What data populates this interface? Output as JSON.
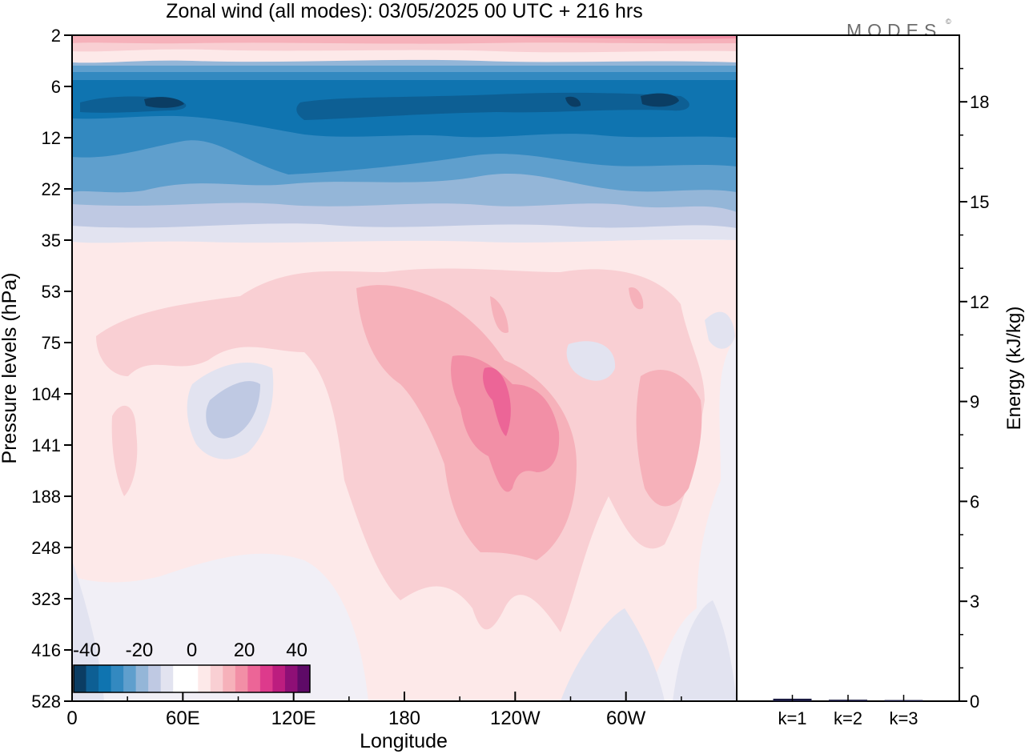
{
  "title": "Zonal wind (all modes):  03/05/2025  00 UTC  + 216 hrs",
  "logo": "MODES",
  "logo_mark": "©",
  "colors": {
    "negative": [
      "#0b3d63",
      "#0d5f94",
      "#0f74b0",
      "#3389c0",
      "#5f9fcd",
      "#94b6d8",
      "#bfc9e3",
      "#e2e3f0"
    ],
    "neutral": "#ffffff",
    "positive": [
      "#fde9e9",
      "#f9cfd3",
      "#f6b1ba",
      "#f28fa6",
      "#ec6597",
      "#dd3a8c",
      "#bc1d7f",
      "#8e0f76",
      "#5e0a67"
    ],
    "background_field": "#f1eff6"
  },
  "chart_data": [
    {
      "type": "heatmap",
      "title": "Zonal wind (all modes):  03/05/2025  00 UTC  + 216 hrs",
      "xlabel": "Longitude",
      "ylabel": "Pressure levels (hPa)",
      "x_ticks": [
        "0",
        "60E",
        "120E",
        "180",
        "120W",
        "60W"
      ],
      "x_tick_values": [
        0,
        60,
        120,
        180,
        240,
        300
      ],
      "x_range": [
        0,
        360
      ],
      "y_ticks": [
        "2",
        "6",
        "12",
        "22",
        "35",
        "53",
        "75",
        "104",
        "141",
        "188",
        "248",
        "323",
        "416",
        "528"
      ],
      "colorbar": {
        "tick_labels": [
          "-40",
          "-20",
          "0",
          "20",
          "40"
        ],
        "tick_values": [
          -40,
          -20,
          0,
          20,
          40
        ],
        "range": [
          -45,
          45
        ],
        "step": 5
      },
      "features": [
        {
          "label": "stratospheric easterly jet",
          "x_range": [
            0,
            360
          ],
          "levels": [
            "6",
            "12"
          ],
          "value": -35
        },
        {
          "label": "upper westerlies",
          "x_range": [
            0,
            360
          ],
          "levels": [
            "2"
          ],
          "value": 10
        },
        {
          "label": "subtropical westerly maximum",
          "x_range": [
            200,
            240
          ],
          "levels": [
            "104",
            "141"
          ],
          "value": 25
        },
        {
          "label": "weak easterlies",
          "x_range": [
            65,
            100
          ],
          "levels": [
            "104",
            "141"
          ],
          "value": -7
        }
      ]
    },
    {
      "type": "bar",
      "categories": [
        "k=1",
        "k=2",
        "k=3"
      ],
      "values": [
        0.05,
        0.02,
        0.01
      ],
      "ylabel": "Energy (kJ/kg)",
      "ylim": [
        0,
        20
      ],
      "y_ticks": [
        "0",
        "3",
        "6",
        "9",
        "12",
        "15",
        "18"
      ],
      "y_tick_values": [
        0,
        3,
        6,
        9,
        12,
        15,
        18
      ]
    }
  ]
}
